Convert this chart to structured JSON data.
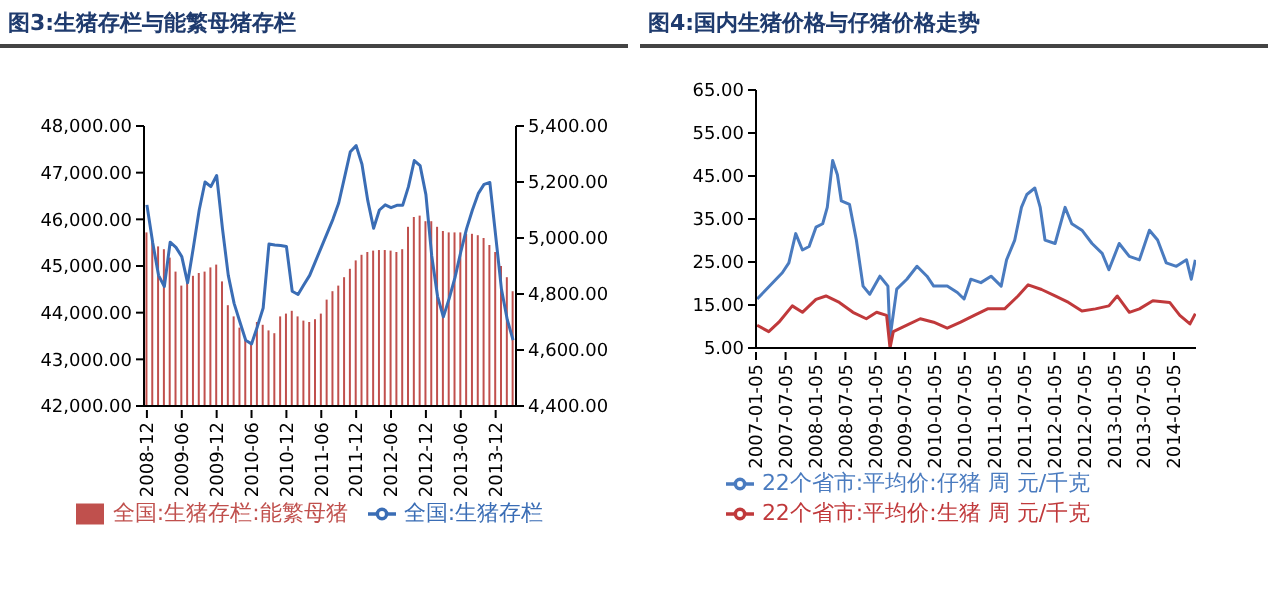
{
  "chart_data": [
    {
      "type": "bar",
      "title": "图3:生猪存栏与能繁母猪存栏",
      "legend": "bottom",
      "marker": "none",
      "categories": [
        "2008-12",
        null,
        null,
        null,
        null,
        null,
        "2009-06",
        null,
        null,
        null,
        null,
        null,
        "2009-12",
        null,
        null,
        null,
        null,
        null,
        "2010-06",
        null,
        null,
        null,
        null,
        null,
        "2010-12",
        null,
        null,
        null,
        null,
        null,
        "2011-06",
        null,
        null,
        null,
        null,
        null,
        "2011-12",
        null,
        null,
        null,
        null,
        null,
        "2012-06",
        null,
        null,
        null,
        null,
        null,
        "2012-12",
        null,
        null,
        null,
        null,
        null,
        "2013-06",
        null,
        null,
        null,
        null,
        null,
        "2013-12",
        null,
        null,
        null
      ],
      "series": [
        {
          "name": "全国:生猪存栏:能繁母猪",
          "axis": "y2",
          "color": "#c0504d",
          "values": [
            5020,
            4990,
            4970,
            4960,
            4930,
            4880,
            4830,
            4845,
            4865,
            4875,
            4880,
            4895,
            4905,
            4845,
            4760,
            4720,
            4680,
            4640,
            4620,
            4700,
            4690,
            4670,
            4660,
            4720,
            4730,
            4740,
            4720,
            4705,
            4700,
            4710,
            4730,
            4780,
            4810,
            4830,
            4860,
            4890,
            4920,
            4940,
            4950,
            4955,
            4957,
            4957,
            4955,
            4950,
            4960,
            5040,
            5075,
            5080,
            5060,
            5060,
            5040,
            5025,
            5020,
            5020,
            5020,
            5015,
            5015,
            5010,
            5000,
            4975,
            4950,
            4900,
            4860,
            4810
          ]
        },
        {
          "name": "全国:生猪存栏",
          "type": "line",
          "color": "#3a6db5",
          "values": [
            46310,
            45500,
            44800,
            44560,
            45510,
            45400,
            45200,
            44640,
            45400,
            46200,
            46800,
            46700,
            46940,
            45800,
            44800,
            44200,
            43800,
            43410,
            43330,
            43700,
            44100,
            45470,
            45450,
            45440,
            45420,
            44460,
            44390,
            44600,
            44800,
            45100,
            45400,
            45700,
            46000,
            46350,
            46900,
            47450,
            47580,
            47180,
            46400,
            45810,
            46200,
            46310,
            46250,
            46300,
            46300,
            46700,
            47260,
            47150,
            46530,
            45220,
            44350,
            43910,
            44300,
            44750,
            45300,
            45800,
            46200,
            46550,
            46750,
            46790,
            45650,
            44500,
            43850,
            43410
          ]
        }
      ],
      "ylim": [
        42000,
        48000
      ],
      "yticks": [
        {
          "value": 42000,
          "label": "42,000.00"
        },
        {
          "value": 43000,
          "label": "43,000.00"
        },
        {
          "value": 44000,
          "label": "44,000.00"
        },
        {
          "value": 45000,
          "label": "45,000.00"
        },
        {
          "value": 46000,
          "label": "46,000.00"
        },
        {
          "value": 47000,
          "label": "47,000.00"
        },
        {
          "value": 48000,
          "label": "48,000.00"
        }
      ],
      "y2lim": [
        4400,
        5400
      ],
      "y2ticks": [
        {
          "value": 4400,
          "label": "4,400.00"
        },
        {
          "value": 4600,
          "label": "4,600.00"
        },
        {
          "value": 4800,
          "label": "4,800.00"
        },
        {
          "value": 5000,
          "label": "5,000.00"
        },
        {
          "value": 5200,
          "label": "5,200.00"
        },
        {
          "value": 5400,
          "label": "5,400.00"
        }
      ]
    },
    {
      "type": "line",
      "title": "图4:国内生猪价格与仔猪价格走势",
      "legend": "bottom",
      "marker": "none",
      "xlim": [
        "2007-01-05",
        "2014-05-20"
      ],
      "xticks": [
        "2007-01-05",
        "2007-07-05",
        "2008-01-05",
        "2008-07-05",
        "2009-01-05",
        "2009-07-05",
        "2010-01-05",
        "2010-07-05",
        "2011-01-05",
        "2011-07-05",
        "2012-01-05",
        "2012-07-05",
        "2013-01-05",
        "2013-07-05",
        "2014-01-05"
      ],
      "ylim": [
        5,
        65
      ],
      "yticks": [
        {
          "value": 5,
          "label": "5.00"
        },
        {
          "value": 15,
          "label": "15.00"
        },
        {
          "value": 25,
          "label": "25.00"
        },
        {
          "value": 35,
          "label": "35.00"
        },
        {
          "value": 45,
          "label": "45.00"
        },
        {
          "value": 55,
          "label": "55.00"
        },
        {
          "value": 65,
          "label": "65.00"
        }
      ],
      "series": [
        {
          "name": "22个省市:平均价:仔猪 周 元/千克",
          "color": "#4a7bbf",
          "x": [
            "2007-01-12",
            "2007-06-15",
            "2007-07-25",
            "2007-09-05",
            "2007-10-16",
            "2007-11-26",
            "2008-01-07",
            "2008-02-17",
            "2008-03-16",
            "2008-04-18",
            "2008-05-17",
            "2008-06-10",
            "2008-07-30",
            "2008-09-10",
            "2008-10-21",
            "2008-12-01",
            "2009-02-01",
            "2009-03-22",
            "2009-04-04",
            "2009-05-15",
            "2009-07-16",
            "2009-09-16",
            "2009-11-16",
            "2009-12-27",
            "2010-03-20",
            "2010-05-21",
            "2010-07-01",
            "2010-08-11",
            "2010-10-12",
            "2010-12-13",
            "2011-02-13",
            "2011-03-18",
            "2011-05-07",
            "2011-06-17",
            "2011-07-20",
            "2011-09-07",
            "2011-10-10",
            "2011-11-08",
            "2012-01-09",
            "2012-03-10",
            "2012-04-20",
            "2012-06-21",
            "2012-08-22",
            "2012-10-23",
            "2012-12-03",
            "2013-02-04",
            "2013-04-07",
            "2013-06-08",
            "2013-08-08",
            "2013-09-27",
            "2013-11-19",
            "2014-01-20",
            "2014-03-23",
            "2014-04-21",
            "2014-05-16"
          ],
          "values": [
            16.4,
            22.5,
            24.8,
            31.6,
            27.8,
            28.6,
            33.1,
            33.9,
            37.7,
            48.6,
            45.3,
            39.2,
            38.4,
            30.1,
            19.4,
            17.5,
            21.7,
            19.4,
            7.4,
            18.7,
            21,
            24,
            21.7,
            19.4,
            19.4,
            17.9,
            16.4,
            21,
            20.2,
            21.7,
            19.4,
            25.5,
            30.1,
            37.7,
            40.7,
            42.2,
            37.7,
            30.1,
            29.3,
            37.7,
            33.9,
            32.4,
            29.3,
            27,
            23.2,
            29.3,
            26.3,
            25.5,
            32.4,
            30.1,
            24.8,
            24,
            25.5,
            21,
            25.5
          ]
        },
        {
          "name": "22个省市:平均价:生猪 周 元/千克",
          "color": "#c0393b",
          "x": [
            "2007-01-12",
            "2007-03-24",
            "2007-05-25",
            "2007-08-15",
            "2007-10-16",
            "2008-01-07",
            "2008-03-08",
            "2008-05-29",
            "2008-08-20",
            "2008-11-10",
            "2009-01-12",
            "2009-03-14",
            "2009-04-04",
            "2009-04-24",
            "2009-07-16",
            "2009-10-06",
            "2009-12-27",
            "2010-03-20",
            "2010-06-10",
            "2010-09-01",
            "2010-11-22",
            "2011-03-06",
            "2011-05-27",
            "2011-07-28",
            "2011-10-18",
            "2012-01-09",
            "2012-03-31",
            "2012-06-21",
            "2012-09-12",
            "2012-12-03",
            "2013-01-23",
            "2013-04-07",
            "2013-06-08",
            "2013-08-29",
            "2013-12-10",
            "2014-02-10",
            "2014-04-13",
            "2014-05-16"
          ],
          "values": [
            10.3,
            8.8,
            11,
            14.8,
            13.3,
            16.3,
            17.1,
            15.6,
            13.3,
            11.8,
            13.3,
            12.6,
            5,
            8.8,
            10.3,
            11.8,
            11,
            9.6,
            11,
            12.6,
            14.1,
            14.1,
            17.1,
            19.7,
            18.6,
            17.1,
            15.6,
            13.6,
            14.1,
            14.8,
            17.1,
            13.3,
            14.1,
            16,
            15.6,
            12.6,
            10.6,
            13
          ]
        }
      ]
    }
  ]
}
